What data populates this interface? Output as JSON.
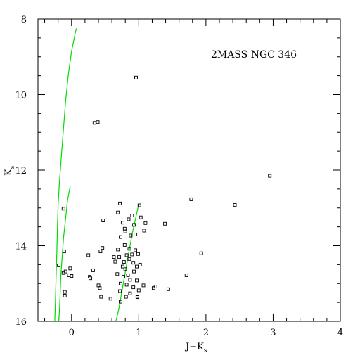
{
  "chart_data": {
    "type": "scatter",
    "title": "2MASS NGC 346",
    "xlabel_main": "J−K",
    "xlabel_sub": "s",
    "ylabel_main": "K",
    "ylabel_sub": "s",
    "xlim": [
      -0.5,
      4
    ],
    "ylim": [
      16,
      8
    ],
    "x_ticks": [
      0,
      1,
      2,
      3,
      4
    ],
    "x_tick_labels": [
      "0",
      "1",
      "2",
      "3",
      "4"
    ],
    "y_ticks": [
      8,
      10,
      12,
      14,
      16
    ],
    "y_tick_labels": [
      "8",
      "10",
      "12",
      "14",
      "16"
    ],
    "x_minor_step": 0.2,
    "y_minor_step": 0.5,
    "grid": false,
    "colors": {
      "points": "#000000",
      "isochrone": "#00dd00",
      "axes": "#000000"
    },
    "points": [
      [
        0.96,
        9.55
      ],
      [
        0.34,
        10.75
      ],
      [
        0.39,
        10.73
      ],
      [
        2.95,
        12.15
      ],
      [
        1.78,
        12.77
      ],
      [
        2.43,
        12.92
      ],
      [
        0.72,
        12.88
      ],
      [
        1.01,
        12.93
      ],
      [
        0.69,
        13.12
      ],
      [
        0.85,
        13.3
      ],
      [
        0.9,
        13.2
      ],
      [
        1.03,
        13.25
      ],
      [
        0.93,
        13.45
      ],
      [
        0.76,
        13.39
      ],
      [
        0.79,
        13.55
      ],
      [
        1.1,
        13.4
      ],
      [
        1.08,
        13.6
      ],
      [
        1.39,
        13.42
      ],
      [
        -0.12,
        13.02
      ],
      [
        0.47,
        13.33
      ],
      [
        0.8,
        13.62
      ],
      [
        0.73,
        13.77
      ],
      [
        0.88,
        13.73
      ],
      [
        0.95,
        13.7
      ],
      [
        0.79,
        13.98
      ],
      [
        0.69,
        14.1
      ],
      [
        0.86,
        14.08
      ],
      [
        0.95,
        14.12
      ],
      [
        0.82,
        14.25
      ],
      [
        0.71,
        14.3
      ],
      [
        0.78,
        14.43
      ],
      [
        0.86,
        14.35
      ],
      [
        0.9,
        14.23
      ],
      [
        0.99,
        14.22
      ],
      [
        0.46,
        14.06
      ],
      [
        0.43,
        14.15
      ],
      [
        0.25,
        14.25
      ],
      [
        0.63,
        14.3
      ],
      [
        -0.11,
        14.15
      ],
      [
        0.65,
        14.42
      ],
      [
        0.76,
        14.55
      ],
      [
        0.8,
        14.62
      ],
      [
        0.92,
        14.45
      ],
      [
        0.97,
        14.55
      ],
      [
        1.02,
        14.5
      ],
      [
        0.93,
        14.68
      ],
      [
        0.84,
        14.78
      ],
      [
        0.77,
        14.82
      ],
      [
        0.68,
        14.75
      ],
      [
        1.93,
        14.2
      ],
      [
        1.71,
        14.78
      ],
      [
        -0.19,
        14.52
      ],
      [
        -0.09,
        14.68
      ],
      [
        -0.12,
        14.72
      ],
      [
        -0.02,
        14.6
      ],
      [
        -0.04,
        14.78
      ],
      [
        0.0,
        14.8
      ],
      [
        0.32,
        14.65
      ],
      [
        0.87,
        14.9
      ],
      [
        0.97,
        14.92
      ],
      [
        0.73,
        15.0
      ],
      [
        0.82,
        15.03
      ],
      [
        0.92,
        15.1
      ],
      [
        1.0,
        15.18
      ],
      [
        1.07,
        15.05
      ],
      [
        0.4,
        15.05
      ],
      [
        0.42,
        15.12
      ],
      [
        0.27,
        14.82
      ],
      [
        0.28,
        14.86
      ],
      [
        1.22,
        15.12
      ],
      [
        1.25,
        15.08
      ],
      [
        1.44,
        15.15
      ],
      [
        0.72,
        15.2
      ],
      [
        0.87,
        15.26
      ],
      [
        0.81,
        15.35
      ],
      [
        0.98,
        15.36
      ],
      [
        0.44,
        15.35
      ],
      [
        0.58,
        15.4
      ],
      [
        0.73,
        15.48
      ],
      [
        -0.1,
        15.22
      ],
      [
        -0.1,
        15.32
      ],
      [
        0.98,
        15.35
      ]
    ],
    "isochrones": [
      {
        "points": [
          [
            0.07,
            8.25
          ],
          [
            0.0,
            8.85
          ],
          [
            -0.05,
            9.5
          ],
          [
            -0.09,
            10.2
          ],
          [
            -0.12,
            10.9
          ],
          [
            -0.15,
            11.6
          ],
          [
            -0.18,
            12.3
          ],
          [
            -0.2,
            12.9
          ],
          [
            -0.21,
            13.5
          ],
          [
            -0.22,
            14.2
          ],
          [
            -0.23,
            14.8
          ],
          [
            -0.24,
            15.5
          ],
          [
            -0.25,
            16.0
          ]
        ]
      },
      {
        "points": [
          [
            -0.02,
            12.42
          ],
          [
            -0.06,
            12.8
          ],
          [
            -0.09,
            13.3
          ],
          [
            -0.12,
            13.8
          ],
          [
            -0.14,
            14.3
          ],
          [
            -0.16,
            14.8
          ],
          [
            -0.17,
            15.3
          ],
          [
            -0.18,
            15.7
          ],
          [
            -0.19,
            16.0
          ]
        ]
      },
      {
        "points": [
          [
            1.0,
            12.9
          ],
          [
            0.95,
            13.3
          ],
          [
            0.9,
            13.7
          ],
          [
            0.86,
            14.1
          ],
          [
            0.82,
            14.5
          ],
          [
            0.78,
            14.9
          ],
          [
            0.74,
            15.3
          ],
          [
            0.7,
            15.7
          ],
          [
            0.66,
            16.0
          ]
        ]
      }
    ]
  }
}
